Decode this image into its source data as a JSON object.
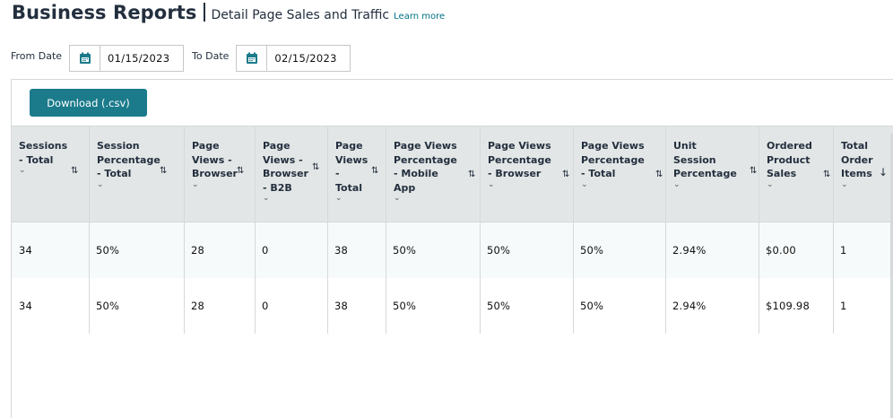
{
  "header": {
    "title": "Business Reports",
    "subtitle": "Detail Page Sales and Traffic",
    "learn_more": "Learn more"
  },
  "filters": {
    "from_label": "From Date",
    "from_value": "01/15/2023",
    "to_label": "To Date",
    "to_value": "02/15/2023"
  },
  "toolbar": {
    "download_label": "Download (.csv)"
  },
  "table": {
    "columns": [
      {
        "label": "Sessions - Total"
      },
      {
        "label": "Session Percentage - Total"
      },
      {
        "label": "Page Views - Browser"
      },
      {
        "label": "Page Views - Browser - B2B"
      },
      {
        "label": "Page Views - Total"
      },
      {
        "label": "Page Views Percentage - Mobile App"
      },
      {
        "label": "Page Views Percentage - Browser"
      },
      {
        "label": "Page Views Percentage - Total"
      },
      {
        "label": "Unit Session Percentage"
      },
      {
        "label": "Ordered Product Sales"
      },
      {
        "label": "Total Order Items"
      }
    ],
    "rows": [
      [
        "34",
        "50%",
        "28",
        "0",
        "38",
        "50%",
        "50%",
        "50%",
        "2.94%",
        "$0.00",
        "1"
      ],
      [
        "34",
        "50%",
        "28",
        "0",
        "38",
        "50%",
        "50%",
        "50%",
        "2.94%",
        "$109.98",
        "1"
      ]
    ]
  },
  "icons": {
    "calendar": "calendar-icon",
    "sort": "sort-icon",
    "sort_desc": "arrow-down-icon",
    "chevron": "chevron-down-icon"
  },
  "colors": {
    "accent": "#1b7b8b",
    "header_bg": "#e3e6e6",
    "link": "#007185",
    "calendar": "#1b7b8b"
  }
}
